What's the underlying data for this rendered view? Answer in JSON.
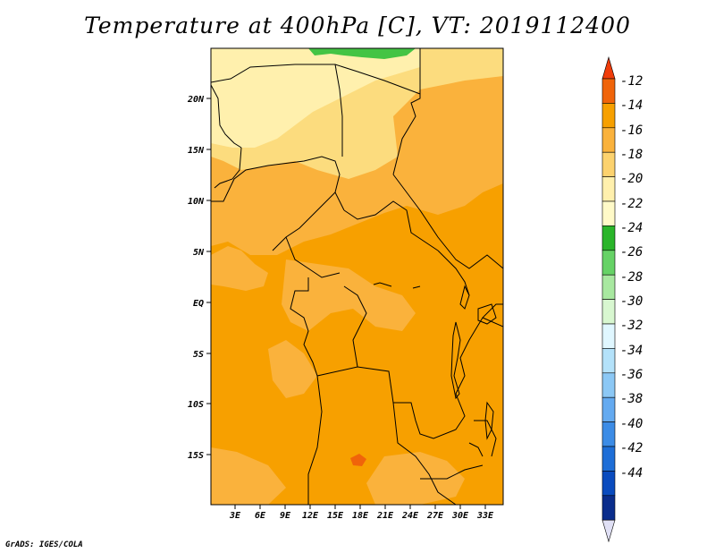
{
  "title": "Temperature at 400hPa [C], VT: 2019112400",
  "credit": "GrADS: IGES/COLA",
  "map": {
    "lat_labels": [
      "20N",
      "15N",
      "10N",
      "5N",
      "EQ",
      "5S",
      "10S",
      "15S"
    ],
    "lon_labels": [
      "3E",
      "6E",
      "9E",
      "12E",
      "15E",
      "18E",
      "21E",
      "24E",
      "27E",
      "30E",
      "33E"
    ],
    "fill_colors": {
      "c_14_12": "#f7a000",
      "c_16_14": "#fab23c",
      "c_18_16": "#fcdc7e",
      "c_20_18": "#fff0ad",
      "c_24_22": "#44c444",
      "c_16_14b": "#f5c86a"
    }
  },
  "colorbar": {
    "labels": [
      "-12",
      "-14",
      "-16",
      "-18",
      "-20",
      "-22",
      "-24",
      "-26",
      "-28",
      "-30",
      "-32",
      "-34",
      "-36",
      "-38",
      "-40",
      "-42",
      "-44"
    ],
    "colors": [
      "#f03c0a",
      "#f0640a",
      "#f7a000",
      "#fab23c",
      "#fcd26e",
      "#fff0ad",
      "#fffac8",
      "#2ab52a",
      "#66d266",
      "#a8e8a0",
      "#d8f7d0",
      "#e0f7ff",
      "#b4e2fa",
      "#8cc8f5",
      "#64aaf0",
      "#3c8ce6",
      "#1e6ed7",
      "#0a4bbe",
      "#0a2d8c",
      "#e0e0f5"
    ]
  }
}
